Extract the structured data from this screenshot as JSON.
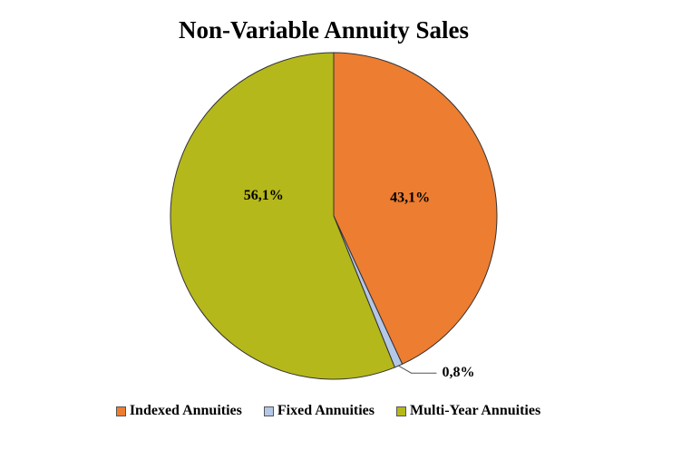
{
  "chart_data": {
    "type": "pie",
    "title": "Non-Variable Annuity Sales",
    "categories": [
      "Indexed Annuities",
      "Fixed Annuities",
      "Multi-Year Annuities"
    ],
    "values": [
      43.1,
      0.8,
      56.1
    ],
    "labels": [
      "43,1%",
      "0,8%",
      "56,1%"
    ],
    "colors": [
      "#ED7D31",
      "#B4C7E7",
      "#B5B81A"
    ],
    "legend_position": "bottom"
  }
}
